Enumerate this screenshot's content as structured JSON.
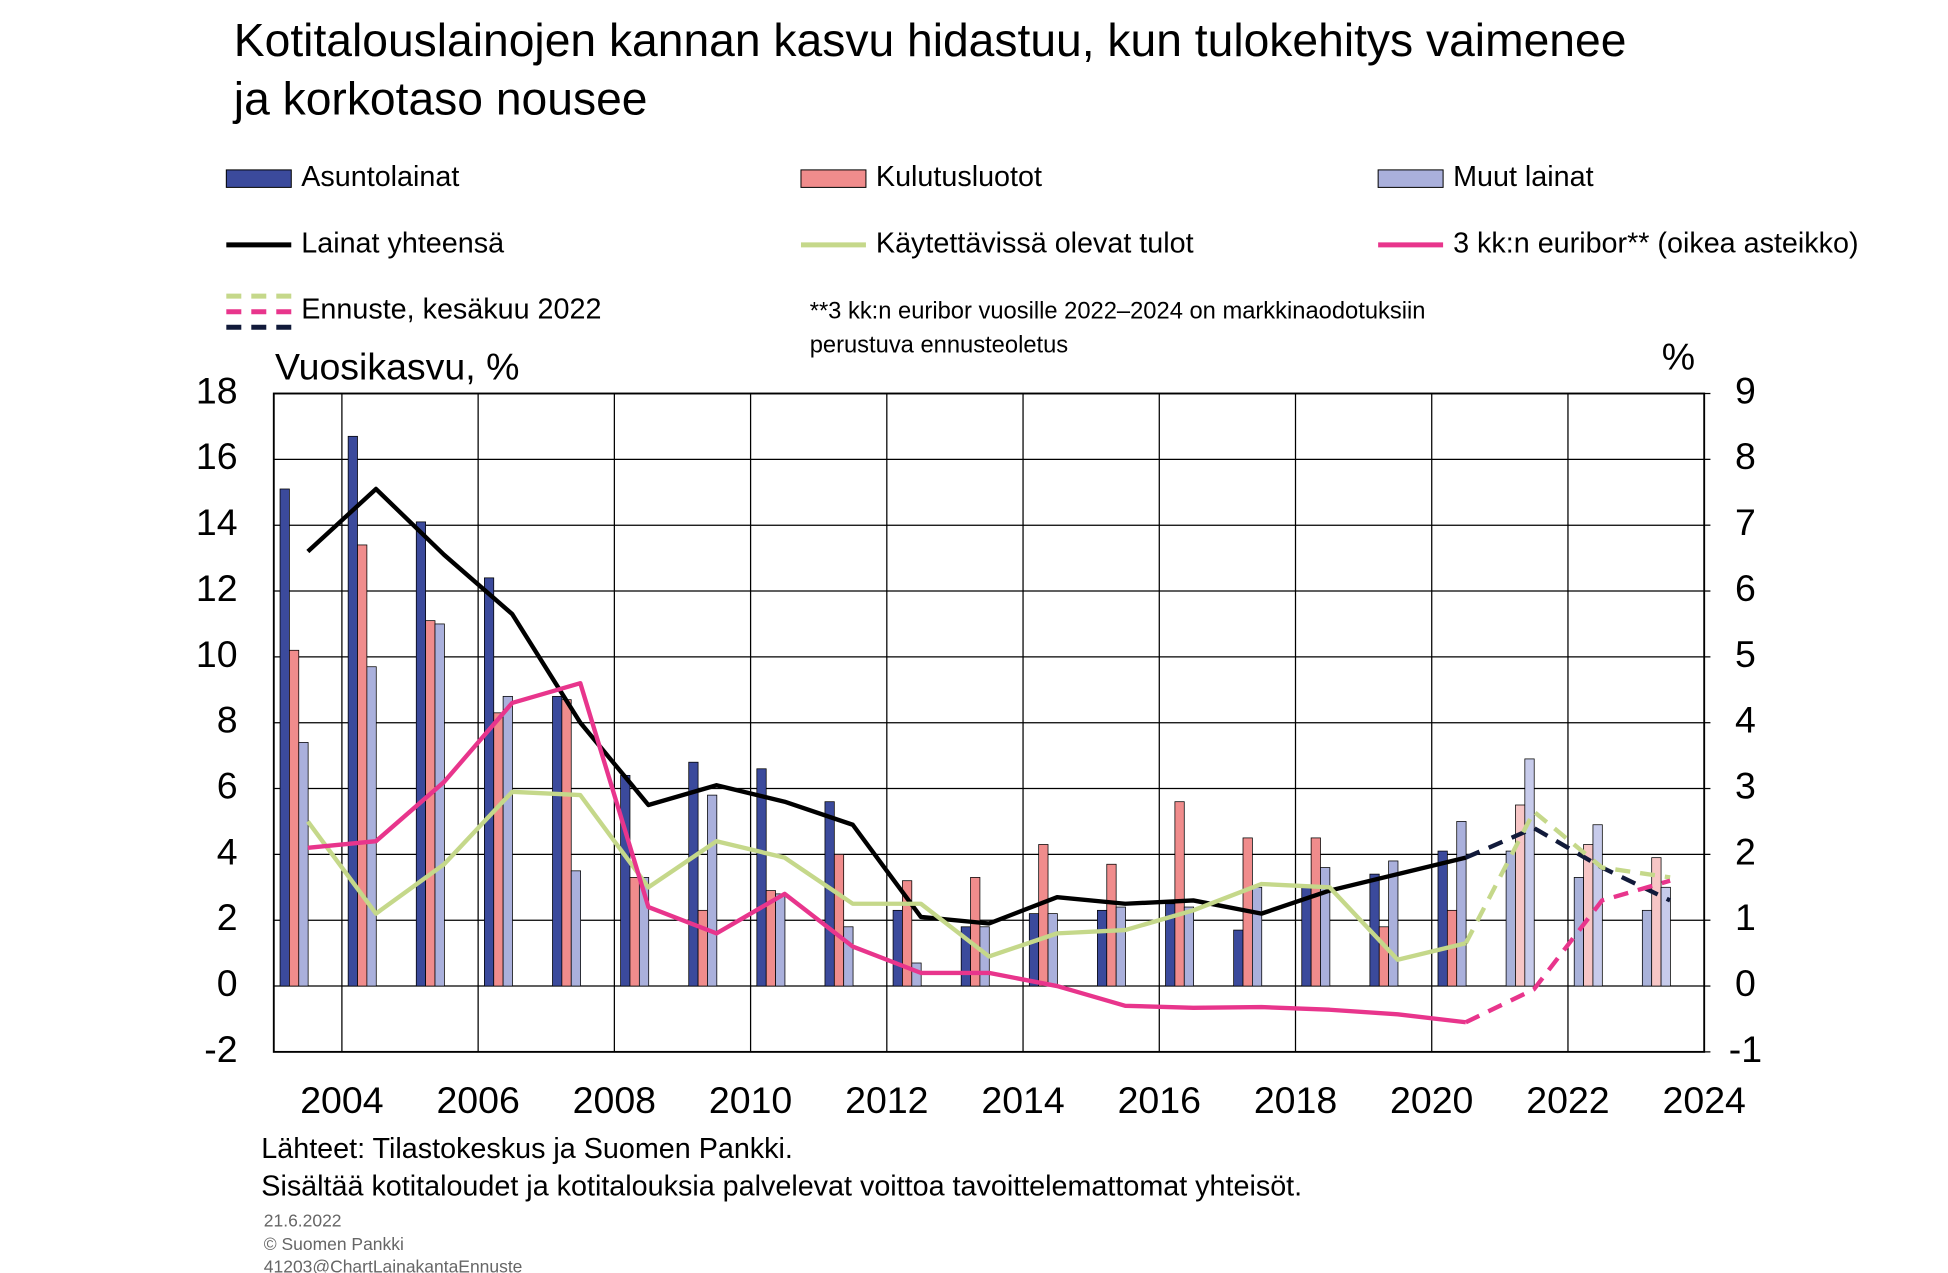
{
  "chart_data": {
    "type": "bar",
    "title": [
      "Kotitalouslainojen kannan kasvu hidastuu, kun tulokehitys vaimenee",
      "ja korkotaso nousee"
    ],
    "ylabel": "Vuosikasvu, %",
    "y2label": "%",
    "categories": [
      "2004",
      null,
      "2006",
      null,
      "2008",
      null,
      "2010",
      null,
      "2012",
      null,
      "2014",
      null,
      "2016",
      null,
      "2018",
      null,
      "2020",
      null,
      "2022",
      null,
      "2024"
    ],
    "ylim": [
      -2,
      18
    ],
    "yticks": [
      -2,
      0,
      2,
      4,
      6,
      8,
      10,
      12,
      14,
      16,
      18
    ],
    "y2lim": [
      -1,
      9
    ],
    "y2ticks": [
      -1,
      0,
      1,
      2,
      3,
      4,
      5,
      6,
      7,
      8,
      9
    ],
    "grid": true,
    "series": [
      {
        "name": "Asuntolainat",
        "type": "bar",
        "color": "#3b4a9c",
        "colors": [
          "#3b4a9c",
          "#3b4a9c",
          "#3b4a9c",
          "#3b4a9c",
          "#3b4a9c",
          "#3b4a9c",
          "#3b4a9c",
          "#3b4a9c",
          "#3b4a9c",
          "#3b4a9c",
          "#3b4a9c",
          "#3b4a9c",
          "#3b4a9c",
          "#3b4a9c",
          "#3b4a9c",
          "#3b4a9c",
          "#3b4a9c",
          "#3b4a9c",
          "#a9b2da",
          "#a9b2da",
          "#a9b2da"
        ],
        "values": [
          15.1,
          16.7,
          14.1,
          12.4,
          8.8,
          6.4,
          6.8,
          6.6,
          5.6,
          2.3,
          1.8,
          2.2,
          2.3,
          2.5,
          1.7,
          3.0,
          3.4,
          4.1,
          4.1,
          3.3,
          2.3
        ]
      },
      {
        "name": "Kulutusluotot",
        "type": "bar",
        "color": "#f08c8c",
        "colors": [
          "#f08c8c",
          "#f08c8c",
          "#f08c8c",
          "#f08c8c",
          "#f08c8c",
          "#f08c8c",
          "#f08c8c",
          "#f08c8c",
          "#f08c8c",
          "#f08c8c",
          "#f08c8c",
          "#f08c8c",
          "#f08c8c",
          "#f08c8c",
          "#f08c8c",
          "#f08c8c",
          "#f08c8c",
          "#f08c8c",
          "#f7c6c6",
          "#f7c6c6",
          "#f7c6c6"
        ],
        "values": [
          10.2,
          13.4,
          11.1,
          8.3,
          8.7,
          3.3,
          2.3,
          2.9,
          4.0,
          3.2,
          3.3,
          4.3,
          3.7,
          5.6,
          4.5,
          4.5,
          1.8,
          2.3,
          5.5,
          4.3,
          3.9
        ]
      },
      {
        "name": "Muut lainat",
        "type": "bar",
        "color": "#aab0dc",
        "colors": [
          "#aab0dc",
          "#aab0dc",
          "#aab0dc",
          "#aab0dc",
          "#aab0dc",
          "#aab0dc",
          "#aab0dc",
          "#aab0dc",
          "#aab0dc",
          "#aab0dc",
          "#aab0dc",
          "#aab0dc",
          "#aab0dc",
          "#aab0dc",
          "#aab0dc",
          "#aab0dc",
          "#aab0dc",
          "#aab0dc",
          "#c7cbeb",
          "#c7cbeb",
          "#c7cbeb"
        ],
        "values": [
          7.4,
          9.7,
          11.0,
          8.8,
          3.5,
          3.3,
          5.8,
          2.8,
          1.8,
          0.7,
          1.8,
          2.2,
          2.4,
          2.4,
          3.0,
          3.6,
          3.8,
          5.0,
          6.9,
          4.9,
          3.0
        ]
      },
      {
        "name": "Lainat yhteensä",
        "type": "line",
        "color": "#000000",
        "forecast_color": "#111a3a",
        "values": [
          13.2,
          15.1,
          13.1,
          11.3,
          8.0,
          5.5,
          6.1,
          5.6,
          4.9,
          2.1,
          1.9,
          2.7,
          2.5,
          2.6,
          2.2,
          2.9,
          3.4,
          3.9,
          null,
          null,
          null
        ],
        "forecast_values": [
          null,
          null,
          null,
          null,
          null,
          null,
          null,
          null,
          null,
          null,
          null,
          null,
          null,
          null,
          null,
          null,
          null,
          3.9,
          4.8,
          3.6,
          2.6
        ]
      },
      {
        "name": "Käytettävissä olevat tulot",
        "type": "line",
        "color": "#c5d88a",
        "forecast_color": "#c5d88a",
        "values": [
          5.0,
          2.2,
          3.7,
          5.9,
          5.8,
          3.0,
          4.4,
          3.9,
          2.5,
          2.5,
          0.9,
          1.6,
          1.7,
          2.3,
          3.1,
          3.0,
          0.8,
          1.3,
          null,
          null,
          null
        ],
        "forecast_values": [
          null,
          null,
          null,
          null,
          null,
          null,
          null,
          null,
          null,
          null,
          null,
          null,
          null,
          null,
          null,
          null,
          null,
          1.3,
          5.3,
          3.6,
          3.3
        ]
      },
      {
        "name": "3 kk:n euribor** (oikea asteikko)",
        "type": "line",
        "axis": "y2",
        "color": "#e8358c",
        "forecast_color": "#e8358c",
        "values": [
          2.1,
          2.2,
          3.1,
          4.3,
          4.6,
          1.2,
          0.8,
          1.4,
          0.6,
          0.2,
          0.2,
          0.0,
          -0.3,
          -0.33,
          -0.32,
          -0.36,
          -0.43,
          -0.55,
          null,
          null,
          null
        ],
        "forecast_values": [
          null,
          null,
          null,
          null,
          null,
          null,
          null,
          null,
          null,
          null,
          null,
          null,
          null,
          null,
          null,
          null,
          null,
          -0.55,
          -0.05,
          1.3,
          1.6
        ]
      }
    ],
    "forecast_label": "Ennuste, kesäkuu 2022",
    "footnote": [
      "**3 kk:n euribor vuosille 2022–2024 on markkinaodotuksiin",
      "perustuva ennusteoletus"
    ],
    "sources": [
      "Lähteet: Tilastokeskus ja Suomen Pankki.",
      "Sisältää kotitaloudet ja kotitalouksia palvelevat voittoa tavoittelemattomat yhteisöt."
    ],
    "date": "21.6.2022",
    "copyright": "© Suomen Pankki",
    "code": "41203@ChartLainakantaEnnuste"
  }
}
